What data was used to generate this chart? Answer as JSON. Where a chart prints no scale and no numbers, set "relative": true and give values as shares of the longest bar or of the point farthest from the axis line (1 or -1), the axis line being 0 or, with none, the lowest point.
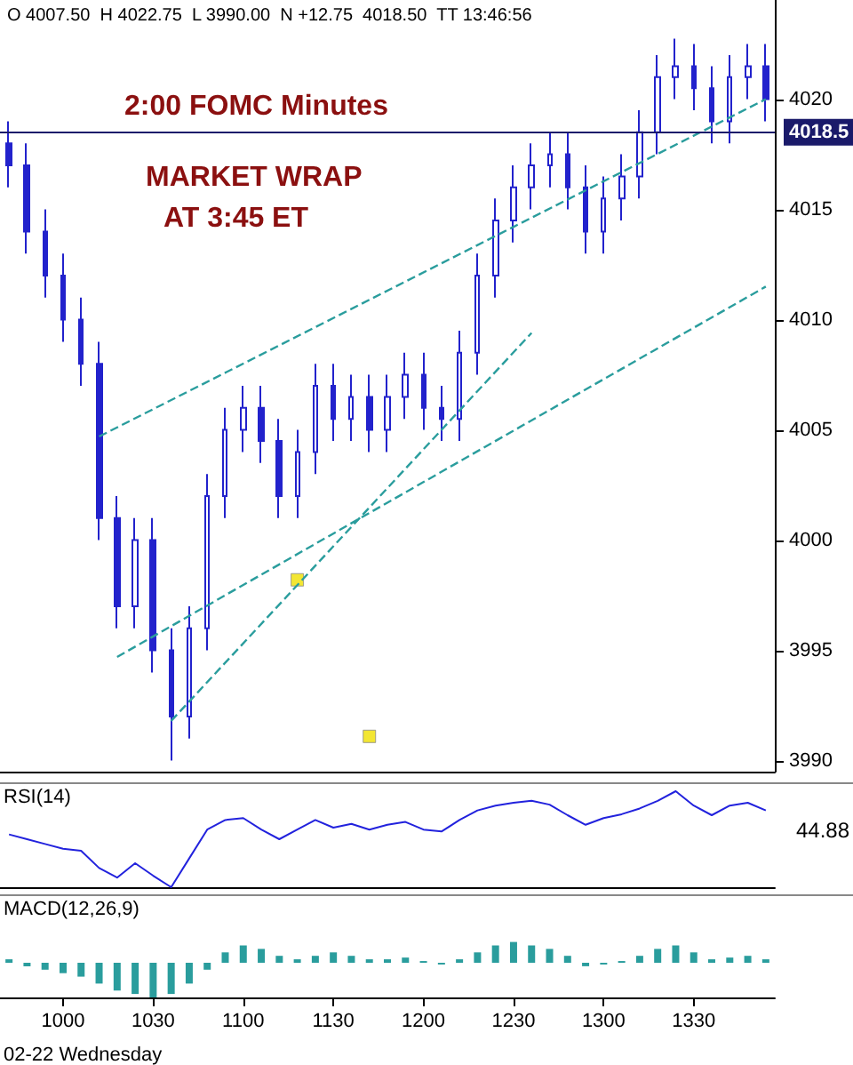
{
  "chart_data": [
    {
      "type": "candlestick",
      "color": "#2222cc",
      "tick_labels": "y",
      "ylim": [
        3989.5,
        4024.5
      ],
      "yticks": [
        3990,
        3995,
        4000,
        4005,
        4010,
        4015,
        4020
      ],
      "line_style": "dashed",
      "categories": [
        null,
        null,
        null,
        null,
        null,
        null,
        null,
        null,
        null,
        null,
        null,
        null,
        null,
        null,
        null,
        null,
        null,
        null,
        null,
        null,
        null,
        null,
        null,
        null,
        null,
        null,
        null,
        null,
        null,
        null,
        null,
        null,
        null,
        null,
        null,
        null,
        null,
        null,
        null,
        null,
        null,
        null,
        null
      ],
      "ohlc": [
        [
          4018,
          4019,
          4016,
          4017
        ],
        [
          4017,
          4018,
          4013,
          4014
        ],
        [
          4014,
          4015,
          4011,
          4012
        ],
        [
          4012,
          4013,
          4009,
          4010
        ],
        [
          4010,
          4011,
          4007,
          4008
        ],
        [
          4008,
          4009,
          4000,
          4001
        ],
        [
          4001,
          4002,
          3996,
          3997
        ],
        [
          3997,
          4001,
          3996,
          4000
        ],
        [
          4000,
          4001,
          3994,
          3995
        ],
        [
          3995,
          3996,
          3990,
          3992
        ],
        [
          3992,
          3997,
          3991,
          3996
        ],
        [
          3996,
          4003,
          3995,
          4002
        ],
        [
          4002,
          4006,
          4001,
          4005
        ],
        [
          4005,
          4007,
          4004,
          4006
        ],
        [
          4006,
          4007,
          4003.5,
          4004.5
        ],
        [
          4004.5,
          4005.5,
          4001,
          4002
        ],
        [
          4002,
          4005,
          4001,
          4004
        ],
        [
          4004,
          4008,
          4003,
          4007
        ],
        [
          4007,
          4008,
          4004.5,
          4005.5
        ],
        [
          4005.5,
          4007.5,
          4004.5,
          4006.5
        ],
        [
          4006.5,
          4007.5,
          4004,
          4005
        ],
        [
          4005,
          4007.5,
          4004,
          4006.5
        ],
        [
          4006.5,
          4008.5,
          4005.5,
          4007.5
        ],
        [
          4007.5,
          4008.5,
          4005,
          4006
        ],
        [
          4006,
          4007,
          4004.5,
          4005.5
        ],
        [
          4005.5,
          4009.5,
          4004.5,
          4008.5
        ],
        [
          4008.5,
          4013,
          4007.5,
          4012
        ],
        [
          4012,
          4015.5,
          4011,
          4014.5
        ],
        [
          4014.5,
          4017,
          4013.5,
          4016
        ],
        [
          4016,
          4018,
          4015,
          4017
        ],
        [
          4017,
          4018.5,
          4016,
          4017.5
        ],
        [
          4017.5,
          4018.5,
          4015,
          4016
        ],
        [
          4016,
          4017,
          4013,
          4014
        ],
        [
          4014,
          4016.5,
          4013,
          4015.5
        ],
        [
          4015.5,
          4017.5,
          4014.5,
          4016.5
        ],
        [
          4016.5,
          4019.5,
          4015.5,
          4018.5
        ],
        [
          4018.5,
          4022,
          4017.5,
          4021
        ],
        [
          4021,
          4022.75,
          4020,
          4021.5
        ],
        [
          4021.5,
          4022.5,
          4019.5,
          4020.5
        ],
        [
          4020.5,
          4021.5,
          4018,
          4019
        ],
        [
          4019,
          4022,
          4018,
          4021
        ],
        [
          4021,
          4022.5,
          4020,
          4021.5
        ],
        [
          4021.5,
          4022.5,
          4019,
          4020
        ]
      ],
      "series": [
        {
          "type": "line",
          "color": "#2a9d9d",
          "marker": "none",
          "values": [
            null,
            null,
            null,
            null,
            null,
            4004.7,
            null,
            null,
            null,
            null,
            null,
            null,
            null,
            null,
            null,
            null,
            null,
            null,
            null,
            null,
            null,
            null,
            null,
            null,
            null,
            null,
            null,
            null,
            null,
            null,
            null,
            null,
            null,
            null,
            null,
            null,
            null,
            null,
            null,
            null,
            null,
            null,
            4020
          ]
        },
        {
          "type": "line",
          "color": "#2a9d9d",
          "marker": "none",
          "values": [
            null,
            null,
            null,
            null,
            null,
            null,
            null,
            null,
            null,
            3991.8,
            null,
            null,
            null,
            null,
            null,
            null,
            null,
            null,
            null,
            null,
            null,
            null,
            null,
            null,
            null,
            null,
            null,
            null,
            null,
            4009.4,
            null,
            null,
            null,
            null,
            null,
            null,
            null,
            null,
            null,
            null,
            null,
            null,
            null
          ]
        },
        {
          "type": "line",
          "color": "#2a9d9d",
          "marker": "none",
          "values": [
            null,
            null,
            null,
            null,
            null,
            null,
            3994.7,
            null,
            null,
            null,
            null,
            null,
            null,
            null,
            null,
            null,
            null,
            null,
            null,
            null,
            null,
            null,
            null,
            null,
            null,
            null,
            null,
            null,
            null,
            null,
            null,
            null,
            null,
            null,
            null,
            null,
            null,
            null,
            null,
            null,
            null,
            null,
            4011.5
          ]
        },
        {
          "type": "scatter",
          "color": "#f0e000",
          "marker": "square",
          "values": [
            null,
            null,
            null,
            null,
            null,
            null,
            null,
            null,
            null,
            null,
            null,
            null,
            null,
            null,
            null,
            null,
            3998.2,
            null,
            null,
            null,
            3991.1,
            null,
            null,
            null,
            null,
            null,
            null,
            null,
            null,
            null,
            null,
            null,
            null,
            null,
            null,
            null,
            null,
            null,
            null,
            null,
            null,
            null,
            null
          ]
        }
      ],
      "ref_lines": [
        {
          "axis": "y",
          "value": 4018.5,
          "label": "4018.5",
          "color": "#1a1a6a"
        }
      ],
      "annotations": [
        "O 4007.50  H 4022.75  L 3990.00  N +12.75  4018.50  TT 13:46:56",
        "2:00 FOMC Minutes",
        "MARKET WRAP",
        "AT 3:45 ET"
      ]
    },
    {
      "type": "line",
      "relative": true,
      "color": "#2222dd",
      "tick_labels": false,
      "marker": "none",
      "title": "RSI(14)",
      "categories": [
        null,
        null,
        null,
        null,
        null,
        null,
        null,
        null,
        null,
        null,
        null,
        null,
        null,
        null,
        null,
        null,
        null,
        null,
        null,
        null,
        null,
        null,
        null,
        null,
        null,
        null,
        null,
        null,
        null,
        null,
        null,
        null,
        null,
        null,
        null,
        null,
        null,
        null,
        null,
        null,
        null,
        null,
        null
      ],
      "values": [
        0.55,
        0.5,
        0.45,
        0.4,
        0.38,
        0.2,
        0.1,
        0.25,
        0.12,
        0,
        0.3,
        0.6,
        0.7,
        0.72,
        0.6,
        0.5,
        0.6,
        0.7,
        0.62,
        0.66,
        0.6,
        0.65,
        0.68,
        0.6,
        0.58,
        0.7,
        0.8,
        0.85,
        0.88,
        0.9,
        0.86,
        0.75,
        0.65,
        0.72,
        0.76,
        0.82,
        0.9,
        1,
        0.85,
        0.75,
        0.85,
        0.88,
        0.8
      ],
      "annotations": [
        "44.88"
      ]
    },
    {
      "type": "bar",
      "relative": true,
      "color": "#2a9d9d",
      "tick_labels": "x",
      "title": "MACD(12,26,9)",
      "categories": [
        null,
        null,
        null,
        "1000",
        null,
        null,
        null,
        null,
        "1030",
        null,
        null,
        null,
        null,
        "1100",
        null,
        null,
        null,
        null,
        "1130",
        null,
        null,
        null,
        null,
        "1200",
        null,
        null,
        null,
        null,
        "1230",
        null,
        null,
        null,
        null,
        "1300",
        null,
        null,
        null,
        null,
        "1330",
        null,
        null,
        null,
        null
      ],
      "values": [
        0.1,
        -0.1,
        -0.2,
        -0.3,
        -0.4,
        -0.6,
        -0.8,
        -0.9,
        -1,
        -0.9,
        -0.6,
        -0.2,
        0.3,
        0.5,
        0.4,
        0.2,
        0.1,
        0.2,
        0.3,
        0.2,
        0.1,
        0.1,
        0.15,
        0.05,
        -0.05,
        0.1,
        0.3,
        0.5,
        0.6,
        0.5,
        0.4,
        0.2,
        -0.1,
        -0.05,
        0.05,
        0.2,
        0.4,
        0.5,
        0.3,
        0.1,
        0.15,
        0.2,
        0.1
      ],
      "annotations": [
        "02-22 Wednesday"
      ]
    }
  ]
}
